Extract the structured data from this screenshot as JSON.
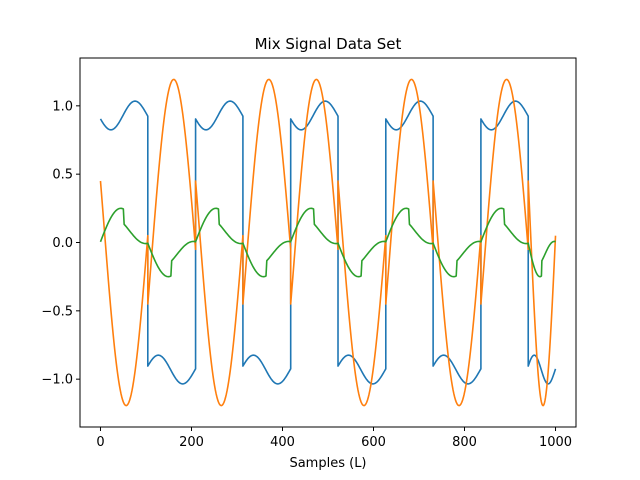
{
  "chart_data": {
    "type": "line",
    "title": "Mix Signal Data Set",
    "xlabel": "Samples (L)",
    "ylabel": "",
    "xlim": [
      -45,
      1045
    ],
    "ylim": [
      -1.35,
      1.35
    ],
    "x_ticks": [
      0,
      200,
      400,
      600,
      800,
      1000
    ],
    "x_tick_labels": [
      "0",
      "200",
      "400",
      "600",
      "800",
      "1000"
    ],
    "y_ticks": [
      -1.0,
      -0.5,
      0.0,
      0.5,
      1.0
    ],
    "y_tick_labels": [
      "−1.0",
      "−0.5",
      "0.0",
      "0.5",
      "1.0"
    ],
    "grid": false,
    "legend": "none",
    "samples": 1000,
    "series": [
      {
        "color": "#1f77b4",
        "segments": [
          {
            "x_start": 0,
            "x_end": 104,
            "sign": 1
          },
          {
            "x_start": 104,
            "x_end": 209,
            "sign": -1
          },
          {
            "x_start": 209,
            "x_end": 313,
            "sign": 1
          },
          {
            "x_start": 313,
            "x_end": 418,
            "sign": -1
          },
          {
            "x_start": 418,
            "x_end": 522,
            "sign": 1
          },
          {
            "x_start": 522,
            "x_end": 627,
            "sign": -1
          },
          {
            "x_start": 627,
            "x_end": 731,
            "sign": 1
          },
          {
            "x_start": 731,
            "x_end": 836,
            "sign": -1
          },
          {
            "x_start": 836,
            "x_end": 940,
            "sign": 1
          },
          {
            "x_start": 940,
            "x_end": 1000,
            "sign": -1
          }
        ]
      },
      {
        "color": "#ff7f0e",
        "segments": [
          {
            "x_start": 0,
            "x_end": 104,
            "sign": -1
          },
          {
            "x_start": 104,
            "x_end": 209,
            "sign": 1
          },
          {
            "x_start": 209,
            "x_end": 313,
            "sign": -1
          },
          {
            "x_start": 313,
            "x_end": 418,
            "sign": 1
          },
          {
            "x_start": 418,
            "x_end": 522,
            "sign": 1
          },
          {
            "x_start": 522,
            "x_end": 627,
            "sign": -1
          },
          {
            "x_start": 627,
            "x_end": 731,
            "sign": 1
          },
          {
            "x_start": 731,
            "x_end": 836,
            "sign": -1
          },
          {
            "x_start": 836,
            "x_end": 940,
            "sign": 1
          },
          {
            "x_start": 940,
            "x_end": 1000,
            "sign": -1
          }
        ]
      },
      {
        "color": "#2ca02c",
        "segments": [
          {
            "x_start": 0,
            "x_end": 104,
            "sign": 1
          },
          {
            "x_start": 104,
            "x_end": 209,
            "sign": -1
          },
          {
            "x_start": 209,
            "x_end": 313,
            "sign": 1
          },
          {
            "x_start": 313,
            "x_end": 418,
            "sign": -1
          },
          {
            "x_start": 418,
            "x_end": 522,
            "sign": 1
          },
          {
            "x_start": 522,
            "x_end": 627,
            "sign": -1
          },
          {
            "x_start": 627,
            "x_end": 731,
            "sign": 1
          },
          {
            "x_start": 731,
            "x_end": 836,
            "sign": -1
          },
          {
            "x_start": 836,
            "x_end": 940,
            "sign": 1
          },
          {
            "x_start": 940,
            "x_end": 1000,
            "sign": -1
          }
        ]
      }
    ]
  }
}
